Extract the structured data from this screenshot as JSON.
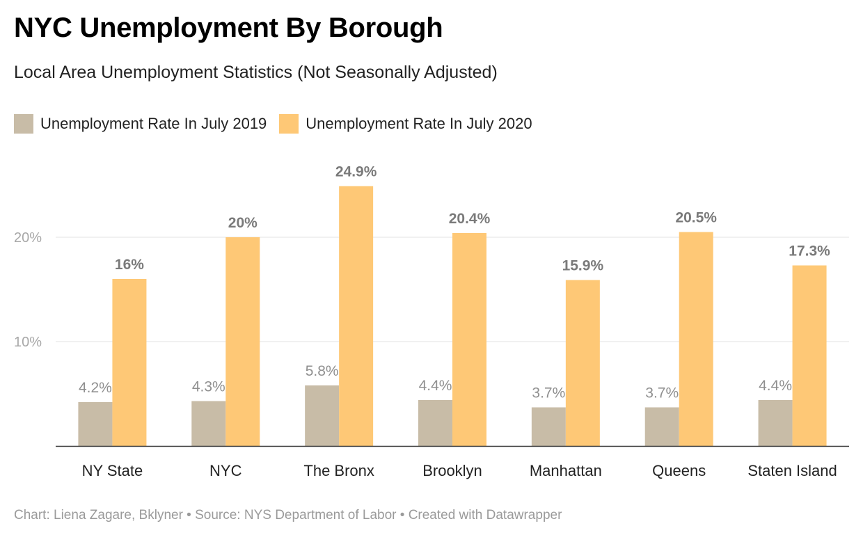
{
  "header": {
    "title": "NYC Unemployment By Borough",
    "subtitle": "Local Area Unemployment Statistics (Not Seasonally Adjusted)"
  },
  "legend": {
    "items": [
      {
        "label": "Unemployment Rate In July 2019",
        "color": "#c8bca7"
      },
      {
        "label": "Unemployment Rate In July 2020",
        "color": "#fec876"
      }
    ]
  },
  "footer": {
    "credit": "Chart: Liena Zagare, Bklyner • Source: NYS Department of Labor • Created with Datawrapper"
  },
  "chart_data": {
    "type": "bar",
    "title": "NYC Unemployment By Borough",
    "subtitle": "Local Area Unemployment Statistics (Not Seasonally Adjusted)",
    "categories": [
      "NY State",
      "NYC",
      "The Bronx",
      "Brooklyn",
      "Manhattan",
      "Queens",
      "Staten Island"
    ],
    "series": [
      {
        "name": "Unemployment Rate In July 2019",
        "color": "#c8bca7",
        "values": [
          4.2,
          4.3,
          5.8,
          4.4,
          3.7,
          3.7,
          4.4
        ],
        "labels": [
          "4.2%",
          "4.3%",
          "5.8%",
          "4.4%",
          "3.7%",
          "3.7%",
          "4.4%"
        ]
      },
      {
        "name": "Unemployment Rate In July 2020",
        "color": "#fec876",
        "values": [
          16,
          20,
          24.9,
          20.4,
          15.9,
          20.5,
          17.3
        ],
        "labels": [
          "16%",
          "20%",
          "24.9%",
          "20.4%",
          "15.9%",
          "20.5%",
          "17.3%"
        ]
      }
    ],
    "yticks": [
      10,
      20
    ],
    "ytick_labels": [
      "10%",
      "20%"
    ],
    "ylim": [
      0,
      25
    ],
    "grid": true,
    "legend_position": "top-left"
  }
}
